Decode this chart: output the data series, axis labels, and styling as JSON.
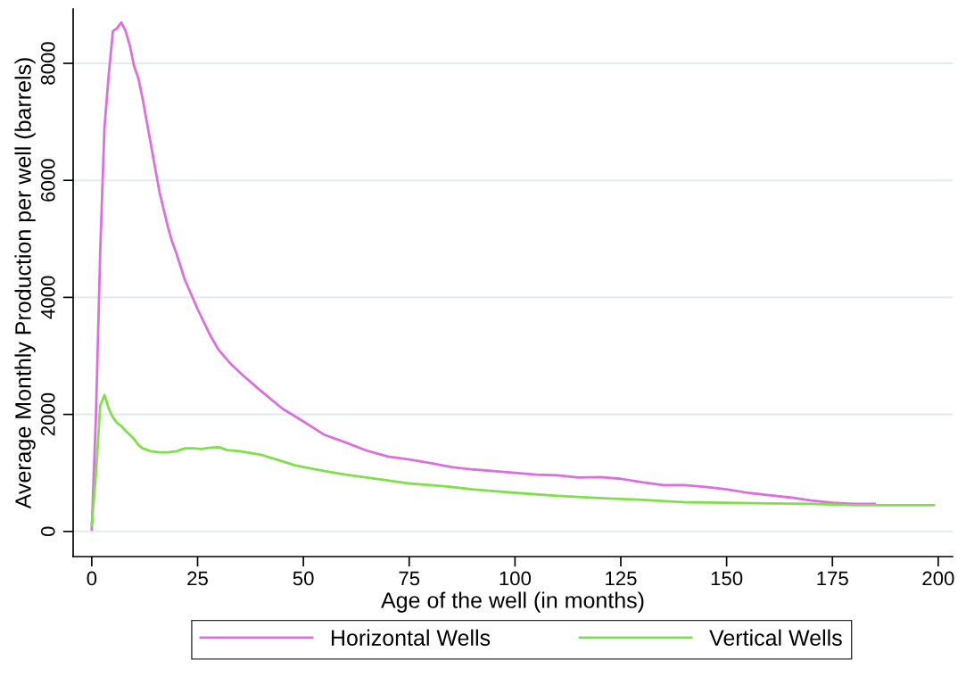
{
  "chart_data": {
    "type": "line",
    "xlabel": "Age of the well (in months)",
    "ylabel": "Average Monthly Production per well (barrels)",
    "xlim": [
      -4.4,
      203.4
    ],
    "ylim": [
      -430,
      8930
    ],
    "xticks": [
      0,
      25,
      50,
      75,
      100,
      125,
      150,
      175,
      200
    ],
    "yticks": [
      0,
      2000,
      4000,
      6000,
      8000
    ],
    "grid": "y",
    "legend": "bottom",
    "marker": "none",
    "line_style": "solid",
    "series": [
      {
        "name": "Horizontal Wells",
        "color": "#dd6ee0",
        "x": [
          0,
          1,
          2,
          3,
          4,
          5,
          6,
          7,
          8,
          9,
          10,
          11,
          12,
          13,
          14,
          15,
          16,
          17,
          18,
          19,
          20,
          22,
          25,
          28,
          30,
          33,
          36,
          40,
          45,
          50,
          55,
          60,
          65,
          70,
          75,
          80,
          85,
          90,
          95,
          100,
          105,
          110,
          115,
          120,
          125,
          130,
          135,
          140,
          145,
          150,
          155,
          160,
          165,
          170,
          175,
          180,
          185
        ],
        "values": [
          30,
          2000,
          4800,
          6900,
          7800,
          8550,
          8600,
          8700,
          8550,
          8300,
          7950,
          7750,
          7400,
          7000,
          6600,
          6200,
          5800,
          5500,
          5200,
          4950,
          4750,
          4300,
          3800,
          3350,
          3100,
          2850,
          2650,
          2400,
          2100,
          1880,
          1650,
          1520,
          1380,
          1280,
          1230,
          1170,
          1100,
          1060,
          1030,
          1000,
          970,
          960,
          920,
          930,
          900,
          840,
          790,
          790,
          760,
          720,
          660,
          620,
          580,
          530,
          490,
          470,
          470
        ]
      },
      {
        "name": "Vertical Wells",
        "color": "#7ee04a",
        "x": [
          0,
          1,
          2,
          3,
          4,
          5,
          6,
          7,
          8,
          9,
          10,
          11,
          12,
          14,
          16,
          18,
          20,
          22,
          24,
          26,
          28,
          30,
          32,
          35,
          40,
          45,
          48,
          50,
          55,
          60,
          65,
          70,
          75,
          80,
          85,
          90,
          95,
          100,
          110,
          120,
          130,
          140,
          150,
          160,
          170,
          180,
          190,
          199
        ],
        "values": [
          100,
          1000,
          2150,
          2330,
          2100,
          1950,
          1850,
          1800,
          1720,
          1650,
          1580,
          1480,
          1420,
          1370,
          1350,
          1350,
          1370,
          1420,
          1420,
          1410,
          1430,
          1440,
          1390,
          1370,
          1310,
          1200,
          1130,
          1100,
          1030,
          970,
          920,
          870,
          820,
          790,
          760,
          720,
          690,
          660,
          610,
          570,
          540,
          500,
          490,
          480,
          470,
          450,
          450,
          450
        ]
      }
    ]
  }
}
